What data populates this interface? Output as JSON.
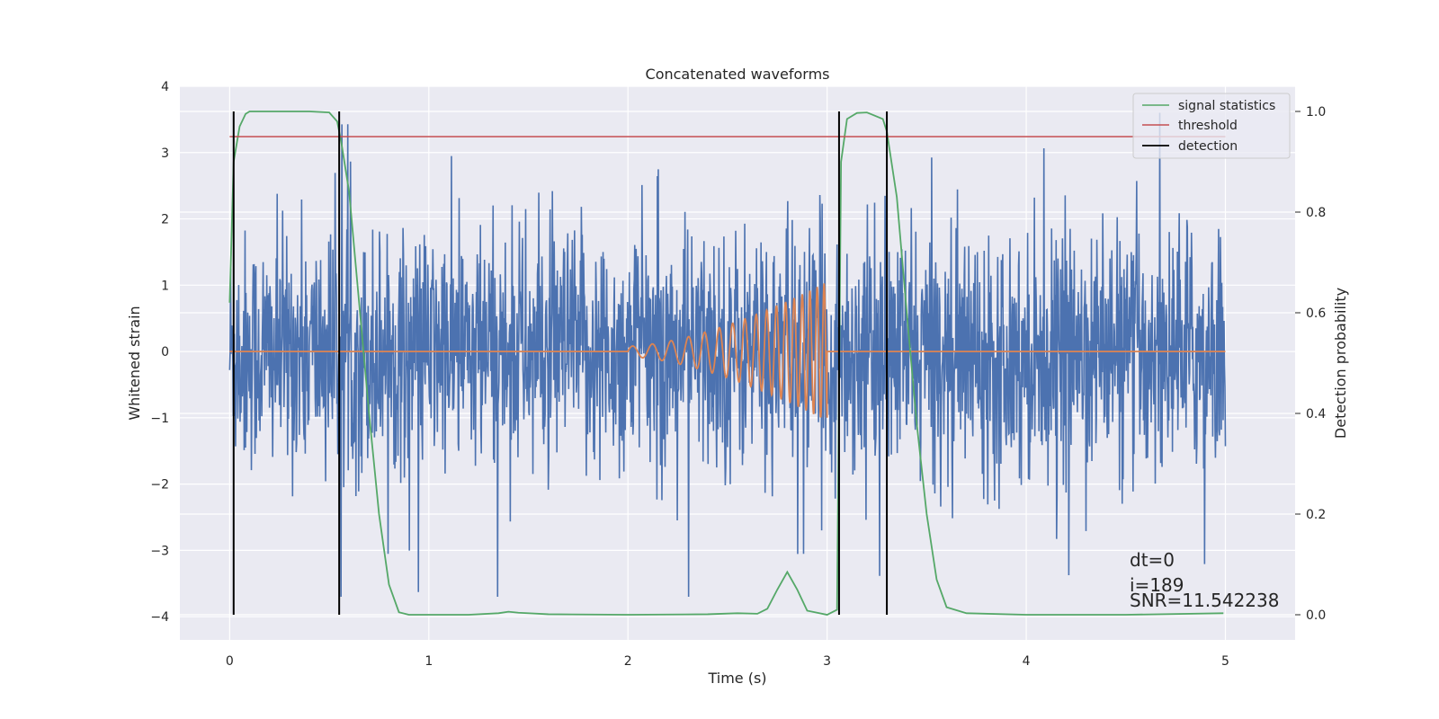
{
  "chart_data": {
    "type": "line",
    "title": "Concatenated waveforms",
    "xlabel": "Time (s)",
    "ylabel": "Whitened strain",
    "y2label": "Detection probability",
    "xlim": [
      -0.25,
      5.35
    ],
    "ylim": [
      -4.35,
      4.0
    ],
    "y2lim": [
      -0.05,
      1.05
    ],
    "xticks": [
      0,
      1,
      2,
      3,
      4,
      5
    ],
    "yticks": [
      -4,
      -3,
      -2,
      -1,
      0,
      1,
      2,
      3,
      4
    ],
    "y2ticks": [
      0.0,
      0.2,
      0.4,
      0.6,
      0.8,
      1.0
    ],
    "ytick_labels": [
      "−4",
      "−3",
      "−2",
      "−1",
      "0",
      "1",
      "2",
      "3",
      "4"
    ],
    "y2tick_labels": [
      "0.0",
      "0.2",
      "0.4",
      "0.6",
      "0.8",
      "1.0"
    ],
    "grid": true,
    "legend": "top-right",
    "noise": {
      "color": "#4c72b0",
      "x_range": [
        0,
        5
      ],
      "typical_amplitude": 0.9,
      "peak_max": 3.6,
      "peak_min": -3.7
    },
    "template": {
      "color": "#dd8452",
      "zero_before": [
        0,
        2.0
      ],
      "chirp_range": [
        2.0,
        3.0
      ],
      "chirp_amplitude_start": 0.08,
      "chirp_amplitude_end": 1.05,
      "zero_after": [
        3.0,
        5.0
      ]
    },
    "series": [
      {
        "name": "signal statistics",
        "axis": "right",
        "color": "#55a868",
        "x": [
          0.0,
          0.02,
          0.05,
          0.08,
          0.1,
          0.2,
          0.3,
          0.4,
          0.5,
          0.54,
          0.56,
          0.6,
          0.65,
          0.7,
          0.75,
          0.8,
          0.85,
          0.9,
          1.0,
          1.2,
          1.35,
          1.4,
          1.45,
          1.6,
          2.0,
          2.4,
          2.55,
          2.65,
          2.7,
          2.75,
          2.8,
          2.85,
          2.9,
          3.0,
          3.05,
          3.07,
          3.1,
          3.15,
          3.2,
          3.28,
          3.3,
          3.35,
          3.4,
          3.45,
          3.5,
          3.55,
          3.6,
          3.7,
          4.0,
          4.5,
          4.99
        ],
        "y": [
          0.62,
          0.9,
          0.97,
          0.995,
          1.0,
          1.0,
          1.0,
          1.0,
          0.998,
          0.98,
          0.94,
          0.84,
          0.62,
          0.4,
          0.2,
          0.06,
          0.005,
          0.0,
          0.0,
          0.0,
          0.003,
          0.006,
          0.004,
          0.001,
          0.0,
          0.001,
          0.003,
          0.002,
          0.012,
          0.05,
          0.085,
          0.05,
          0.008,
          0.0,
          0.01,
          0.9,
          0.985,
          0.997,
          0.998,
          0.985,
          0.96,
          0.83,
          0.6,
          0.38,
          0.2,
          0.07,
          0.015,
          0.003,
          0.0,
          0.0,
          0.003
        ]
      },
      {
        "name": "threshold",
        "axis": "right",
        "color": "#c44e52",
        "x": [
          0,
          5
        ],
        "y": [
          0.95,
          0.95
        ]
      },
      {
        "name": "detection",
        "axis": "right",
        "color": "#000000",
        "x": [
          0.02,
          0.55,
          3.06,
          3.3
        ]
      }
    ],
    "annotations": [
      "dt=0",
      "i=189",
      "SNR=11.542238"
    ]
  }
}
